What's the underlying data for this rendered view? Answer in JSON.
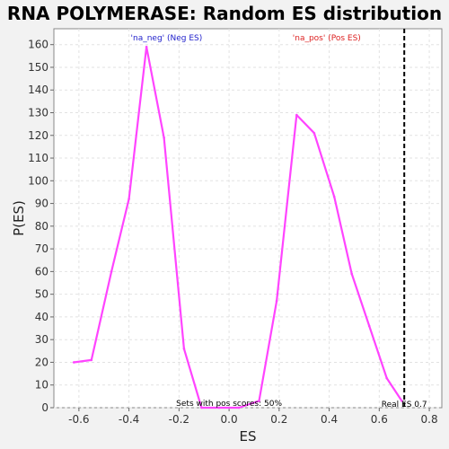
{
  "chart_data": {
    "type": "line",
    "title": "RNA POLYMERASE: Random ES distribution",
    "xlabel": "ES",
    "ylabel": "P(ES)",
    "xlim": [
      -0.7,
      0.85
    ],
    "ylim": [
      0,
      167
    ],
    "xticks": [
      -0.6,
      -0.4,
      -0.2,
      0.0,
      0.2,
      0.4,
      0.6,
      0.8
    ],
    "xtick_labels": [
      "-0.6",
      "-0.4",
      "-0.2",
      "0.0",
      "0.2",
      "0.4",
      "0.6",
      "0.8"
    ],
    "yticks": [
      0,
      10,
      20,
      30,
      40,
      50,
      60,
      70,
      80,
      90,
      100,
      110,
      120,
      130,
      140,
      150,
      160
    ],
    "ytick_labels": [
      "0",
      "10",
      "20",
      "30",
      "40",
      "50",
      "60",
      "70",
      "80",
      "90",
      "100",
      "110",
      "120",
      "130",
      "140",
      "150",
      "160"
    ],
    "grid": true,
    "series": [
      {
        "color": "#ff44ff",
        "x": [
          -0.62,
          -0.55,
          -0.47,
          -0.4,
          -0.33,
          -0.26,
          -0.18,
          -0.11,
          -0.04,
          0.04,
          0.12,
          0.19,
          0.27,
          0.34,
          0.42,
          0.49,
          0.56,
          0.63,
          0.69
        ],
        "y": [
          20,
          21,
          60,
          92,
          159,
          119,
          26,
          0,
          0,
          0,
          3,
          47,
          129,
          121,
          93,
          59,
          36,
          13,
          3
        ]
      }
    ],
    "vline": {
      "x": 0.7,
      "color": "#000000"
    },
    "annotations": {
      "neg": {
        "text": "'na_neg' (Neg ES)",
        "color": "#2222cc"
      },
      "pos": {
        "text": "'na_pos' (Pos ES)",
        "color": "#dd2222"
      },
      "sets": {
        "text": "Sets with pos scores: 50%",
        "color": "#000000"
      },
      "real": {
        "text": "Real ES 0.7",
        "color": "#000000"
      }
    }
  }
}
